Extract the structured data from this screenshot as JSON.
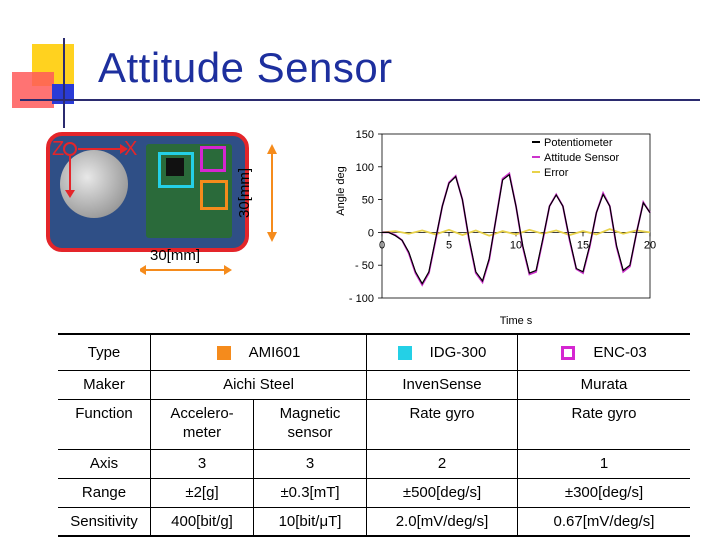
{
  "title": "Attitude Sensor",
  "photo": {
    "axis_z": "Z",
    "axis_x": "X",
    "width_label": "30[mm]",
    "height_label": "30[mm]"
  },
  "chart_data": {
    "type": "line",
    "xlabel": "Time s",
    "ylabel": "Angle deg",
    "xlim": [
      0,
      20
    ],
    "ylim": [
      -100,
      150
    ],
    "x_ticks": [
      "0",
      "5",
      "10",
      "15",
      "20"
    ],
    "y_ticks": [
      "150",
      "100",
      "50",
      "0",
      "- 50",
      "- 100"
    ],
    "legend_position": "top-right",
    "series": [
      {
        "name": "Potentiometer",
        "color": "#000000",
        "x": [
          0,
          0.5,
          1,
          1.5,
          2,
          2.5,
          3,
          3.5,
          4,
          4.5,
          5,
          5.5,
          6,
          6.5,
          7,
          7.5,
          8,
          8.5,
          9,
          9.5,
          10,
          10.5,
          11,
          11.5,
          12,
          12.5,
          13,
          13.5,
          14,
          14.5,
          15,
          15.5,
          16,
          16.5,
          17,
          17.5,
          18,
          18.5,
          19,
          19.5,
          20
        ],
        "y": [
          0,
          0,
          -5,
          -12,
          -30,
          -60,
          -78,
          -60,
          -10,
          40,
          75,
          85,
          50,
          -10,
          -60,
          -74,
          -40,
          20,
          80,
          88,
          40,
          -20,
          -62,
          -58,
          -10,
          40,
          57,
          40,
          -10,
          -55,
          -60,
          -20,
          30,
          58,
          40,
          -20,
          -58,
          -50,
          0,
          45,
          30
        ]
      },
      {
        "name": "Attitude Sensor",
        "color": "#cc33cc",
        "x": [
          0,
          0.5,
          1,
          1.5,
          2,
          2.5,
          3,
          3.5,
          4,
          4.5,
          5,
          5.5,
          6,
          6.5,
          7,
          7.5,
          8,
          8.5,
          9,
          9.5,
          10,
          10.5,
          11,
          11.5,
          12,
          12.5,
          13,
          13.5,
          14,
          14.5,
          15,
          15.5,
          16,
          16.5,
          17,
          17.5,
          18,
          18.5,
          19,
          19.5,
          20
        ],
        "y": [
          0,
          0,
          -4,
          -12,
          -32,
          -62,
          -80,
          -62,
          -12,
          40,
          76,
          86,
          50,
          -12,
          -62,
          -76,
          -42,
          20,
          82,
          90,
          40,
          -22,
          -64,
          -60,
          -12,
          40,
          58,
          40,
          -12,
          -56,
          -62,
          -22,
          30,
          60,
          40,
          -22,
          -60,
          -52,
          0,
          46,
          30
        ]
      },
      {
        "name": "Error",
        "color": "#e8d24a",
        "x": [
          0,
          1,
          2,
          3,
          4,
          5,
          6,
          7,
          8,
          9,
          10,
          11,
          12,
          13,
          14,
          15,
          16,
          17,
          18,
          19,
          20
        ],
        "y": [
          0,
          2,
          -2,
          3,
          -3,
          4,
          -4,
          3,
          -5,
          2,
          -3,
          4,
          -2,
          3,
          -4,
          2,
          -3,
          5,
          -2,
          3,
          0
        ]
      }
    ]
  },
  "table": {
    "rows": [
      {
        "label": "Type",
        "cells": [
          "AMI601",
          "IDG-300",
          "ENC-03"
        ]
      },
      {
        "label": "Maker",
        "cells": [
          "Aichi Steel",
          "InvenSense",
          "Murata"
        ]
      },
      {
        "label": "Function",
        "cells": [
          "Accelero-\nmeter",
          "Magnetic\nsensor",
          "Rate gyro",
          "Rate gyro"
        ]
      },
      {
        "label": "Axis",
        "cells": [
          "3",
          "3",
          "2",
          "1"
        ]
      },
      {
        "label": "Range",
        "cells": [
          "±2[g]",
          "±0.3[mT]",
          "±500[deg/s]",
          "±300[deg/s]"
        ]
      },
      {
        "label": "Sensitivity",
        "cells": [
          "400[bit/g]",
          "10[bit/μT]",
          "2.0[mV/deg/s]",
          "0.67[mV/deg/s]"
        ]
      }
    ],
    "type_colors": [
      "#f58b1c",
      "#24d0e6",
      "#d526d1"
    ]
  }
}
